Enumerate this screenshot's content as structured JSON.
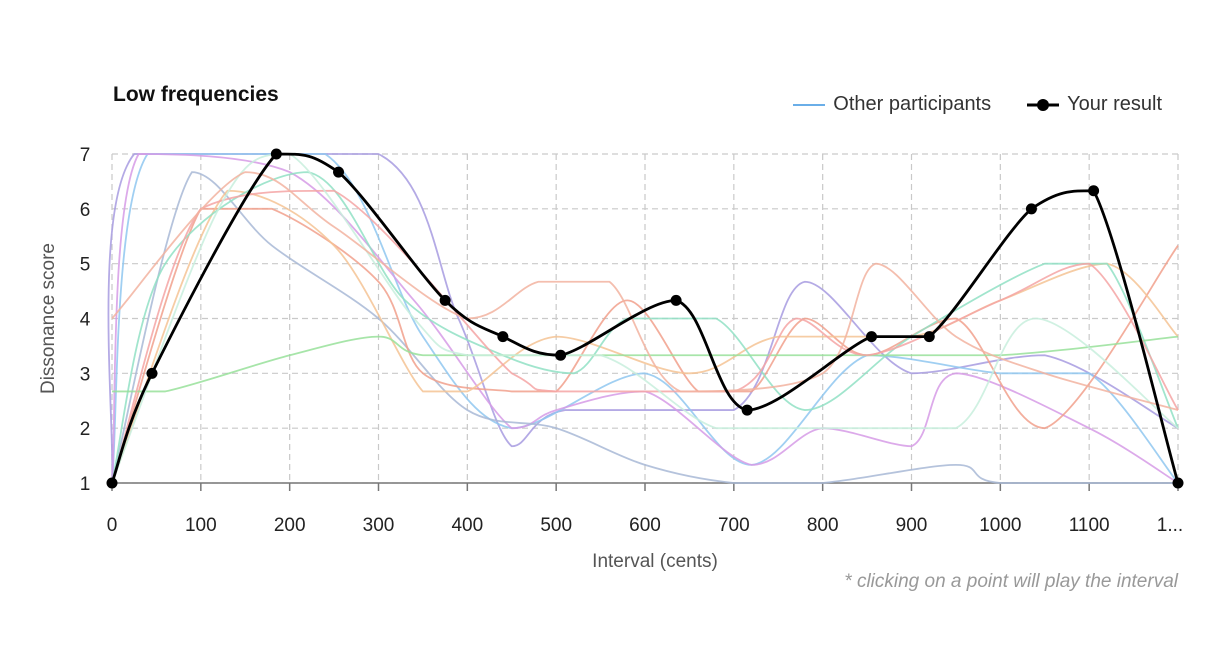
{
  "chart_data": {
    "type": "line",
    "title": "Low frequencies",
    "xlabel": "Interval (cents)",
    "ylabel": "Dissonance score",
    "xlim": [
      0,
      1200
    ],
    "ylim": [
      1,
      7
    ],
    "x_ticks": [
      "0",
      "100",
      "200",
      "300",
      "400",
      "500",
      "600",
      "700",
      "800",
      "900",
      "1000",
      "1100",
      "1..."
    ],
    "y_ticks": [
      "1",
      "2",
      "3",
      "4",
      "5",
      "6",
      "7"
    ],
    "grid": true,
    "legend_placement": "top-right",
    "legend": [
      {
        "label": "Other participants",
        "color": "#6aaee8",
        "style": "line"
      },
      {
        "label": "Your result",
        "color": "#000000",
        "style": "line-with-points"
      }
    ],
    "your_result": {
      "x": [
        0,
        45,
        185,
        255,
        375,
        440,
        505,
        635,
        715,
        855,
        920,
        1035,
        1105,
        1200
      ],
      "y": [
        1,
        3,
        7,
        6.67,
        4.33,
        3.67,
        3.33,
        4.33,
        2.33,
        3.67,
        3.67,
        6,
        6.33,
        1
      ]
    },
    "other_participants": [
      {
        "color": "#a79be0",
        "x": [
          0,
          25,
          300,
          390,
          450,
          510,
          700,
          780,
          900,
          1050,
          1200
        ],
        "y": [
          1,
          7,
          7,
          4,
          1.67,
          2.33,
          2.33,
          4.67,
          3,
          3.33,
          2
        ]
      },
      {
        "color": "#8fc7f0",
        "x": [
          0,
          40,
          240,
          350,
          450,
          600,
          720,
          850,
          1000,
          1100,
          1200
        ],
        "y": [
          1,
          7,
          7,
          3.67,
          2,
          3,
          1.33,
          3.33,
          3,
          3,
          1
        ]
      },
      {
        "color": "#d69be6",
        "x": [
          0,
          30,
          200,
          340,
          450,
          500,
          600,
          720,
          800,
          900,
          950,
          1100,
          1200
        ],
        "y": [
          1,
          7,
          6.67,
          4.33,
          2,
          2.33,
          2.67,
          1.33,
          2,
          1.67,
          3,
          2,
          1
        ]
      },
      {
        "color": "#a8b9d6",
        "x": [
          0,
          90,
          180,
          300,
          400,
          500,
          600,
          700,
          800,
          950,
          1000,
          1200
        ],
        "y": [
          1,
          6.67,
          5.33,
          4,
          2.33,
          2,
          1.33,
          1,
          1,
          1.33,
          1,
          1
        ]
      },
      {
        "color": "#f1a08c",
        "x": [
          0,
          100,
          180,
          300,
          350,
          450,
          500,
          580,
          660,
          720,
          780,
          850,
          950,
          1050,
          1200
        ],
        "y": [
          1,
          6,
          6,
          4.67,
          3,
          2.67,
          2.67,
          4.33,
          2.67,
          2.67,
          4,
          3.33,
          4,
          2,
          5.33
        ]
      },
      {
        "color": "#f5c394",
        "x": [
          0,
          130,
          250,
          350,
          400,
          500,
          650,
          750,
          900,
          1000,
          1120,
          1200
        ],
        "y": [
          1,
          6.33,
          5.33,
          2.67,
          2.67,
          3.67,
          3,
          3.67,
          3.67,
          4.33,
          5,
          3.67
        ]
      },
      {
        "color": "#90e0c4",
        "x": [
          0,
          60,
          220,
          330,
          440,
          520,
          580,
          680,
          780,
          900,
          1050,
          1120,
          1200
        ],
        "y": [
          1,
          5,
          6.67,
          4.33,
          3.33,
          3,
          4,
          4,
          2.33,
          3.67,
          5,
          5,
          2
        ]
      },
      {
        "color": "#98e09a",
        "x": [
          0,
          60,
          200,
          300,
          350,
          500,
          650,
          800,
          1000,
          1200
        ],
        "y": [
          2.67,
          2.67,
          3.33,
          3.67,
          3.33,
          3.33,
          3.33,
          3.33,
          3.33,
          3.67
        ]
      },
      {
        "color": "#f4a4a4",
        "x": [
          0,
          100,
          250,
          450,
          500,
          700,
          770,
          850,
          1000,
          1100,
          1200
        ],
        "y": [
          1,
          6,
          6.33,
          3,
          2.67,
          2.67,
          4,
          3.33,
          4.33,
          5,
          2.33
        ]
      },
      {
        "color": "#c8eedd",
        "x": [
          0,
          120,
          200,
          340,
          400,
          550,
          680,
          800,
          950,
          1040,
          1200
        ],
        "y": [
          1,
          6,
          7,
          4,
          3.33,
          3.33,
          2,
          2,
          2,
          4,
          2
        ]
      },
      {
        "color": "#f2b3a0",
        "x": [
          0,
          150,
          250,
          400,
          480,
          560,
          640,
          800,
          860,
          950,
          1050,
          1200
        ],
        "y": [
          4,
          6.67,
          5.67,
          4,
          4.67,
          4.67,
          2.67,
          3,
          5,
          3.67,
          3,
          2.33
        ]
      }
    ]
  },
  "note": "* clicking on a point will play the interval"
}
